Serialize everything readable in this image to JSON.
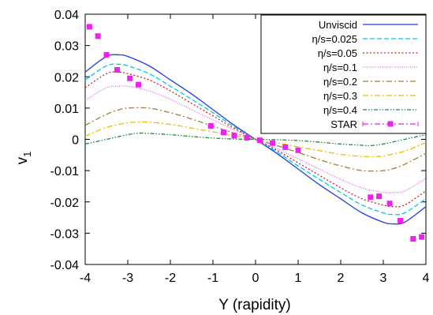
{
  "chart_data": {
    "type": "line",
    "title": "",
    "xlabel": "Y (rapidity)",
    "ylabel": "v",
    "ylabel_subscript": "1",
    "xlim": [
      -4,
      4
    ],
    "ylim": [
      -0.04,
      0.04
    ],
    "x_ticks": [
      -4,
      -3,
      -2,
      -1,
      0,
      1,
      2,
      3,
      4
    ],
    "x_tick_labels": [
      "-4",
      "-3",
      "-2",
      "-1",
      "0",
      "1",
      "2",
      "3",
      "4"
    ],
    "y_ticks": [
      -0.04,
      -0.03,
      -0.02,
      -0.01,
      0,
      0.01,
      0.02,
      0.03,
      0.04
    ],
    "y_tick_labels": [
      "-0.04",
      "-0.03",
      "-0.02",
      "-0.01",
      "0",
      "0.01",
      "0.02",
      "0.03",
      "0.04"
    ],
    "grid": false,
    "legend_position": "top-right",
    "series": [
      {
        "name": "Unviscid",
        "color": "#1f3fe0",
        "dash": "solid",
        "x": [
          -4.0,
          -3.5,
          -3.2,
          -3.0,
          -2.5,
          -2.0,
          -1.5,
          -1.0,
          -0.5,
          0.0,
          0.5,
          1.0,
          1.5,
          2.0,
          2.5,
          3.0,
          3.2,
          3.5,
          4.0
        ],
        "y": [
          0.0215,
          0.0265,
          0.027,
          0.0265,
          0.0235,
          0.019,
          0.0145,
          0.0095,
          0.0045,
          0.0,
          -0.0045,
          -0.0095,
          -0.0145,
          -0.019,
          -0.0235,
          -0.0265,
          -0.027,
          -0.0265,
          -0.0215
        ]
      },
      {
        "name": "η/s=0.025",
        "color": "#00c8e6",
        "dash": "dashed",
        "x": [
          -4.0,
          -3.5,
          -3.2,
          -3.0,
          -2.5,
          -2.0,
          -1.5,
          -1.0,
          -0.5,
          0.0,
          0.5,
          1.0,
          1.5,
          2.0,
          2.5,
          3.0,
          3.2,
          3.5,
          4.0
        ],
        "y": [
          0.019,
          0.0235,
          0.024,
          0.0235,
          0.021,
          0.017,
          0.0128,
          0.0085,
          0.004,
          0.0,
          -0.004,
          -0.0085,
          -0.0128,
          -0.017,
          -0.021,
          -0.0235,
          -0.024,
          -0.0235,
          -0.019
        ]
      },
      {
        "name": "η/s=0.05",
        "color": "#d02020",
        "dash": "dotted",
        "x": [
          -4.0,
          -3.5,
          -3.2,
          -3.0,
          -2.5,
          -2.0,
          -1.5,
          -1.0,
          -0.5,
          0.0,
          0.5,
          1.0,
          1.5,
          2.0,
          2.5,
          3.0,
          3.2,
          3.5,
          4.0
        ],
        "y": [
          0.0165,
          0.021,
          0.0215,
          0.021,
          0.019,
          0.0155,
          0.0115,
          0.0075,
          0.0035,
          0.0,
          -0.0035,
          -0.0075,
          -0.0115,
          -0.0155,
          -0.019,
          -0.021,
          -0.0215,
          -0.021,
          -0.0165
        ]
      },
      {
        "name": "η/s=0.1",
        "color": "#e36ce3",
        "dash": "fine-dotted",
        "x": [
          -4.0,
          -3.5,
          -3.2,
          -3.0,
          -2.5,
          -2.0,
          -1.5,
          -1.0,
          -0.5,
          0.0,
          0.5,
          1.0,
          1.5,
          2.0,
          2.5,
          3.0,
          3.2,
          3.5,
          4.0
        ],
        "y": [
          0.0125,
          0.0165,
          0.017,
          0.017,
          0.0155,
          0.0128,
          0.0095,
          0.0062,
          0.003,
          0.0,
          -0.003,
          -0.0062,
          -0.0095,
          -0.0128,
          -0.0155,
          -0.017,
          -0.017,
          -0.0165,
          -0.0125
        ]
      },
      {
        "name": "η/s=0.2",
        "color": "#a08030",
        "dash": "dash-dot",
        "x": [
          -4.0,
          -3.5,
          -3.2,
          -3.0,
          -2.5,
          -2.0,
          -1.5,
          -1.0,
          -0.5,
          0.0,
          0.5,
          1.0,
          1.5,
          2.0,
          2.5,
          3.0,
          3.2,
          3.5,
          4.0
        ],
        "y": [
          0.0045,
          0.008,
          0.0095,
          0.01,
          0.01,
          0.0085,
          0.0065,
          0.0042,
          0.002,
          0.0,
          -0.002,
          -0.0042,
          -0.0065,
          -0.0085,
          -0.01,
          -0.01,
          -0.0095,
          -0.008,
          -0.0045
        ]
      },
      {
        "name": "η/s=0.3",
        "color": "#e8c000",
        "dash": "dash-dot",
        "x": [
          -4.0,
          -3.5,
          -3.0,
          -2.8,
          -2.5,
          -2.0,
          -1.5,
          -1.0,
          -0.5,
          0.0,
          0.5,
          1.0,
          1.5,
          2.0,
          2.5,
          2.8,
          3.0,
          3.5,
          4.0
        ],
        "y": [
          0.001,
          0.0038,
          0.0053,
          0.0055,
          0.0055,
          0.0048,
          0.0036,
          0.0024,
          0.0011,
          0.0,
          -0.0011,
          -0.0024,
          -0.0036,
          -0.0048,
          -0.0055,
          -0.0055,
          -0.0053,
          -0.0038,
          -0.001
        ]
      },
      {
        "name": "η/s=0.4",
        "color": "#208a40",
        "dash": "dash-dot-dot",
        "x": [
          -4.0,
          -3.5,
          -3.0,
          -2.7,
          -2.5,
          -2.0,
          -1.5,
          -1.0,
          -0.5,
          0.0,
          0.5,
          1.0,
          1.5,
          2.0,
          2.5,
          2.7,
          3.0,
          3.5,
          4.0
        ],
        "y": [
          -0.0015,
          0.0,
          0.0015,
          0.002,
          0.0019,
          0.0015,
          0.0009,
          0.0004,
          0.0001,
          0.0,
          -0.0001,
          -0.0004,
          -0.0009,
          -0.0015,
          -0.0019,
          -0.002,
          -0.0015,
          0.0,
          0.0015
        ]
      }
    ],
    "points": {
      "name": "STAR",
      "color": "#ee22ee",
      "x": [
        -3.9,
        -3.7,
        -3.5,
        -3.25,
        -2.95,
        -2.75,
        -1.05,
        -0.75,
        -0.5,
        -0.2,
        0.1,
        0.4,
        0.7,
        1.0,
        2.7,
        2.9,
        3.15,
        3.4,
        3.7,
        3.9
      ],
      "y": [
        0.036,
        0.033,
        0.027,
        0.0222,
        0.0195,
        0.0175,
        0.0043,
        0.0022,
        0.0012,
        0.0005,
        -0.0003,
        -0.0012,
        -0.0025,
        -0.0035,
        -0.0185,
        -0.0182,
        -0.0205,
        -0.026,
        -0.0318,
        -0.0312
      ]
    }
  }
}
